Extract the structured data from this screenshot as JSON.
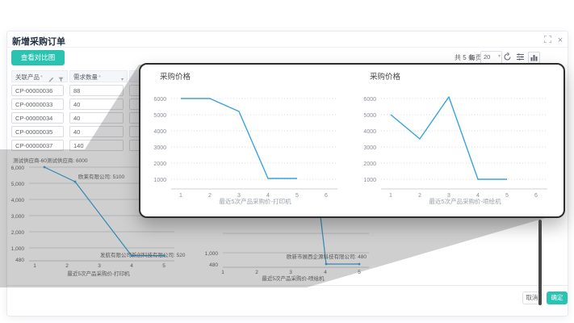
{
  "window": {
    "title": "新增采购订单"
  },
  "toolbar": {
    "suggest_button": "查看对比图"
  },
  "pagination": {
    "total": "共 5 条",
    "per_page_label": "每页",
    "page_size": "20"
  },
  "table": {
    "columns": [
      {
        "label": "关联产品",
        "required_mark": "*"
      },
      {
        "label": "需求数量",
        "required_mark": "*"
      }
    ],
    "rows": [
      {
        "product": "CP-00000036",
        "qty": "88"
      },
      {
        "product": "CP-00000033",
        "qty": "40"
      },
      {
        "product": "CP-00000034",
        "qty": "40"
      },
      {
        "product": "CP-00000035",
        "qty": "40"
      },
      {
        "product": "CP-00000037",
        "qty": "140"
      }
    ]
  },
  "footer": {
    "cancel": "取消",
    "confirm": "确定"
  },
  "colors": {
    "accent": "#2ac2b0",
    "line": "#38a3dc",
    "popover_border": "#2d2d2d"
  },
  "chart_data": [
    {
      "type": "line",
      "title": "采购价格",
      "x": [
        1,
        2,
        3,
        4,
        5
      ],
      "values": [
        6000,
        6000,
        5200,
        1050,
        1050
      ],
      "xticks": [
        "1",
        "2",
        "3",
        "4",
        "5",
        "6"
      ],
      "yticks": [
        "6000",
        "5000",
        "4000",
        "3000",
        "2000",
        "1000"
      ],
      "xlabel": "最近5次产品采购价-打印机",
      "ylim": [
        500,
        6500
      ],
      "xlim": [
        1,
        6
      ],
      "grid": true,
      "legend": false
    },
    {
      "type": "line",
      "title": "采购价格",
      "x": [
        1,
        2,
        3,
        4,
        5
      ],
      "values": [
        5000,
        3500,
        6100,
        1000,
        1000
      ],
      "xticks": [
        "1",
        "2",
        "3",
        "4",
        "5",
        "6"
      ],
      "yticks": [
        "6000",
        "5000",
        "4000",
        "3000",
        "2000",
        "1000"
      ],
      "xlabel": "最近5次产品采购价-喷绘机",
      "ylim": [
        500,
        6500
      ],
      "xlim": [
        1,
        6
      ],
      "grid": true,
      "legend": false
    },
    {
      "type": "line",
      "x": [
        1,
        2,
        4,
        5
      ],
      "values": [
        6000,
        5100,
        520,
        520
      ],
      "xticks": [
        "1",
        "2",
        "3",
        "4",
        "5"
      ],
      "yticks": [
        "6,000",
        "5,000",
        "4,000",
        "3,000",
        "2,000",
        "1,000",
        "480"
      ],
      "xlabel": "最近5次产品采购价-打印机",
      "annotations": [
        "测试供应商-60测试供应商: 6000",
        "欧莱有限公司: 5100",
        "发航有限公司新创科技有限公司: 520"
      ],
      "grid": true
    },
    {
      "type": "line",
      "x": [
        3,
        4,
        5
      ],
      "values": [
        2950,
        480,
        480
      ],
      "xticks": [
        "1",
        "2",
        "3",
        "4",
        "5"
      ],
      "yticks": [
        "1,000",
        "480"
      ],
      "xlabel": "最近5次产品采购价-喷绘机",
      "annotations": [
        "欧新市展西企源科技有限公司: 480"
      ],
      "grid": true
    }
  ]
}
